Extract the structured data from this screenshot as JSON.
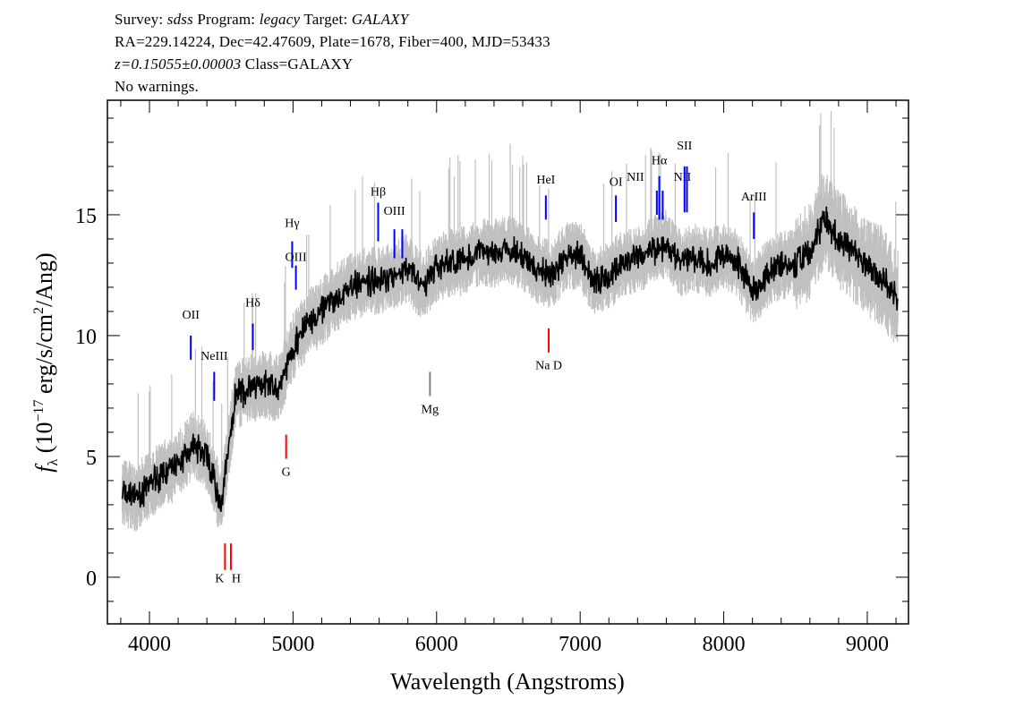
{
  "header": {
    "line1": {
      "survey_label": "Survey:",
      "survey": "sdss",
      "program_label": "Program:",
      "program": "legacy",
      "target_label": "Target:",
      "target": "GALAXY"
    },
    "line2": "RA=229.14224, Dec=42.47609, Plate=1678, Fiber=400, MJD=53433",
    "line3": {
      "redshift": "z=0.15055±0.00003",
      "class": "Class=GALAXY"
    },
    "line4": "No warnings."
  },
  "chart_data": {
    "type": "line",
    "xlabel": "Wavelength (Angstroms)",
    "ylabel": {
      "prefix": "f",
      "sub": "λ",
      "unit_open": " (10",
      "exp": "−17",
      "unit_mid": " erg/s/cm",
      "exp2": "2",
      "unit_close": "/Ang)"
    },
    "xlim": [
      3707,
      9287
    ],
    "ylim": [
      -1.93,
      19.74
    ],
    "xticks": [
      4000,
      5000,
      6000,
      7000,
      8000,
      9000
    ],
    "yticks": [
      0,
      5,
      10,
      15
    ],
    "grid": false,
    "colors": {
      "flux": "#000000",
      "error_band": "#c0c0c0",
      "emission": "#0000ff",
      "absorption": "#ff0000",
      "mg": "#808080"
    },
    "series": [
      {
        "x": [
          3800,
          3900,
          4000,
          4100,
          4200,
          4300,
          4400,
          4500,
          4600,
          4700,
          4800,
          4900,
          5000,
          5100,
          5200,
          5300,
          5400,
          5500,
          5600,
          5700,
          5800,
          5900,
          6000,
          6100,
          6200,
          6300,
          6400,
          6500,
          6600,
          6700,
          6800,
          6900,
          7000,
          7100,
          7200,
          7300,
          7400,
          7500,
          7600,
          7700,
          7800,
          7900,
          8000,
          8100,
          8200,
          8300,
          8400,
          8500,
          8600,
          8700,
          8800,
          8900,
          9000,
          9100,
          9200
        ],
        "y": [
          3.5,
          3.3,
          3.8,
          4.3,
          4.6,
          5.5,
          5.0,
          3.0,
          7.5,
          7.8,
          8.0,
          7.8,
          9.5,
          10.5,
          11.0,
          11.6,
          12.0,
          12.2,
          12.3,
          12.5,
          12.8,
          12.0,
          12.8,
          13.0,
          13.1,
          13.5,
          13.4,
          13.6,
          13.3,
          12.7,
          12.5,
          13.3,
          13.3,
          12.2,
          12.5,
          13.0,
          13.2,
          13.5,
          13.8,
          13.0,
          13.2,
          13.0,
          13.3,
          13.0,
          11.8,
          12.5,
          12.9,
          13.0,
          13.5,
          14.8,
          14.0,
          13.5,
          12.8,
          12.5,
          11.5
        ]
      }
    ],
    "lines": [
      {
        "label": "OII",
        "wavelength": 4288,
        "kind": "emission"
      },
      {
        "label": "NeIII",
        "wavelength": 4451,
        "kind": "emission"
      },
      {
        "label": "Hδ",
        "wavelength": 4720,
        "kind": "emission"
      },
      {
        "label": "Hγ",
        "wavelength": 4994,
        "kind": "emission"
      },
      {
        "label": "OIII",
        "wavelength": 5020,
        "kind": "emission"
      },
      {
        "label": "Hβ",
        "wavelength": 5593,
        "kind": "emission"
      },
      {
        "label": "OIII",
        "wavelength": 5706,
        "kind": "emission"
      },
      {
        "label": "",
        "wavelength": 5761,
        "kind": "emission"
      },
      {
        "label": "HeI",
        "wavelength": 6761,
        "kind": "emission"
      },
      {
        "label": "OI",
        "wavelength": 7249,
        "kind": "emission"
      },
      {
        "label": "NII",
        "wavelength": 7534,
        "kind": "emission"
      },
      {
        "label": "Hα",
        "wavelength": 7551,
        "kind": "emission"
      },
      {
        "label": "NII",
        "wavelength": 7575,
        "kind": "emission"
      },
      {
        "label": "SII",
        "wavelength": 7727,
        "kind": "emission"
      },
      {
        "label": "",
        "wavelength": 7744,
        "kind": "emission"
      },
      {
        "label": "ArIII",
        "wavelength": 8210,
        "kind": "emission"
      },
      {
        "label": "K",
        "wavelength": 4526,
        "kind": "absorption"
      },
      {
        "label": "H",
        "wavelength": 4567,
        "kind": "absorption"
      },
      {
        "label": "G",
        "wavelength": 4952,
        "kind": "absorption"
      },
      {
        "label": "Mg",
        "wavelength": 5954,
        "kind": "mg"
      },
      {
        "label": "Na D",
        "wavelength": 6781,
        "kind": "absorption"
      }
    ]
  }
}
